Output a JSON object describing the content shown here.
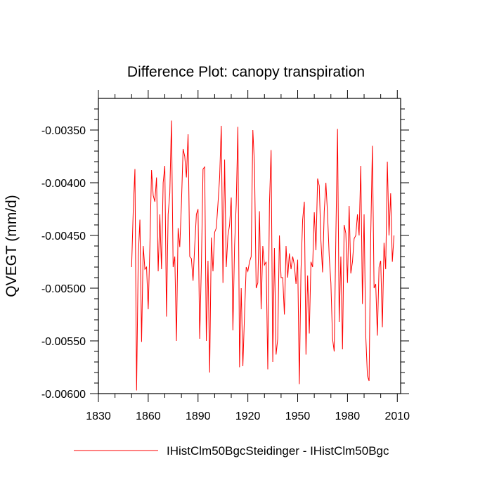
{
  "chart_data": {
    "type": "line",
    "title": "Difference Plot: canopy transpiration",
    "xlabel": "",
    "ylabel": "QVEGT  (mm/d)",
    "xlim": [
      1830,
      2012
    ],
    "ylim": [
      -0.006,
      -0.0032
    ],
    "xticks": [
      1830,
      1860,
      1890,
      1920,
      1950,
      1980,
      2010
    ],
    "xtick_labels": [
      "1830",
      "1860",
      "1890",
      "1920",
      "1950",
      "1980",
      "2010"
    ],
    "yticks": [
      -0.006,
      -0.0055,
      -0.005,
      -0.0045,
      -0.004,
      -0.0035
    ],
    "ytick_labels": [
      "-0.00600",
      "-0.00550",
      "-0.00500",
      "-0.00450",
      "-0.00400",
      "-0.00350"
    ],
    "grid": false,
    "legend_position": "bottom",
    "line_color": "#ff0000",
    "series": [
      {
        "name": "IHistClm50BgcSteidinger - IHistClm50Bgc",
        "x_start": 1850,
        "x_step": 1,
        "values": [
          -0.0048,
          -0.00425,
          -0.00387,
          -0.00597,
          -0.0047,
          -0.00435,
          -0.00551,
          -0.0046,
          -0.00482,
          -0.0048,
          -0.0052,
          -0.0046,
          -0.00388,
          -0.00412,
          -0.00418,
          -0.00395,
          -0.00484,
          -0.0043,
          -0.00482,
          -0.004,
          -0.00384,
          -0.00527,
          -0.0043,
          -0.0041,
          -0.00341,
          -0.0048,
          -0.0047,
          -0.0055,
          -0.00443,
          -0.00461,
          -0.0042,
          -0.00368,
          -0.00375,
          -0.00395,
          -0.00354,
          -0.0047,
          -0.00472,
          -0.00493,
          -0.0046,
          -0.0043,
          -0.00425,
          -0.00548,
          -0.0048,
          -0.00387,
          -0.00385,
          -0.0055,
          -0.00474,
          -0.0058,
          -0.00452,
          -0.00484,
          -0.00447,
          -0.00443,
          -0.0042,
          -0.00395,
          -0.00346,
          -0.00495,
          -0.00378,
          -0.0048,
          -0.0045,
          -0.0044,
          -0.00414,
          -0.0054,
          -0.0046,
          -0.0042,
          -0.00347,
          -0.00575,
          -0.005,
          -0.00574,
          -0.00525,
          -0.0048,
          -0.00484,
          -0.00475,
          -0.0047,
          -0.0035,
          -0.00383,
          -0.005,
          -0.00495,
          -0.00427,
          -0.0052,
          -0.0046,
          -0.00478,
          -0.00475,
          -0.00577,
          -0.0042,
          -0.00369,
          -0.0057,
          -0.00462,
          -0.00563,
          -0.00548,
          -0.0045,
          -0.0049,
          -0.0049,
          -0.00525,
          -0.0046,
          -0.0049,
          -0.00467,
          -0.00482,
          -0.0047,
          -0.00478,
          -0.00496,
          -0.00473,
          -0.00591,
          -0.00483,
          -0.00435,
          -0.00418,
          -0.00563,
          -0.00488,
          -0.00543,
          -0.00475,
          -0.0048,
          -0.00428,
          -0.00464,
          -0.00396,
          -0.00403,
          -0.00455,
          -0.00485,
          -0.00427,
          -0.004,
          -0.0043,
          -0.0047,
          -0.00495,
          -0.00548,
          -0.0056,
          -0.0045,
          -0.00349,
          -0.00532,
          -0.0047,
          -0.00558,
          -0.0044,
          -0.00448,
          -0.00495,
          -0.00422,
          -0.00486,
          -0.00475,
          -0.00453,
          -0.0045,
          -0.0043,
          -0.0045,
          -0.00384,
          -0.00515,
          -0.0043,
          -0.00545,
          -0.00583,
          -0.00588,
          -0.0045,
          -0.00365,
          -0.005,
          -0.00496,
          -0.00545,
          -0.0048,
          -0.00474,
          -0.00537,
          -0.00457,
          -0.00482,
          -0.0038,
          -0.0045,
          -0.0041,
          -0.00475,
          -0.0045
        ]
      }
    ]
  }
}
